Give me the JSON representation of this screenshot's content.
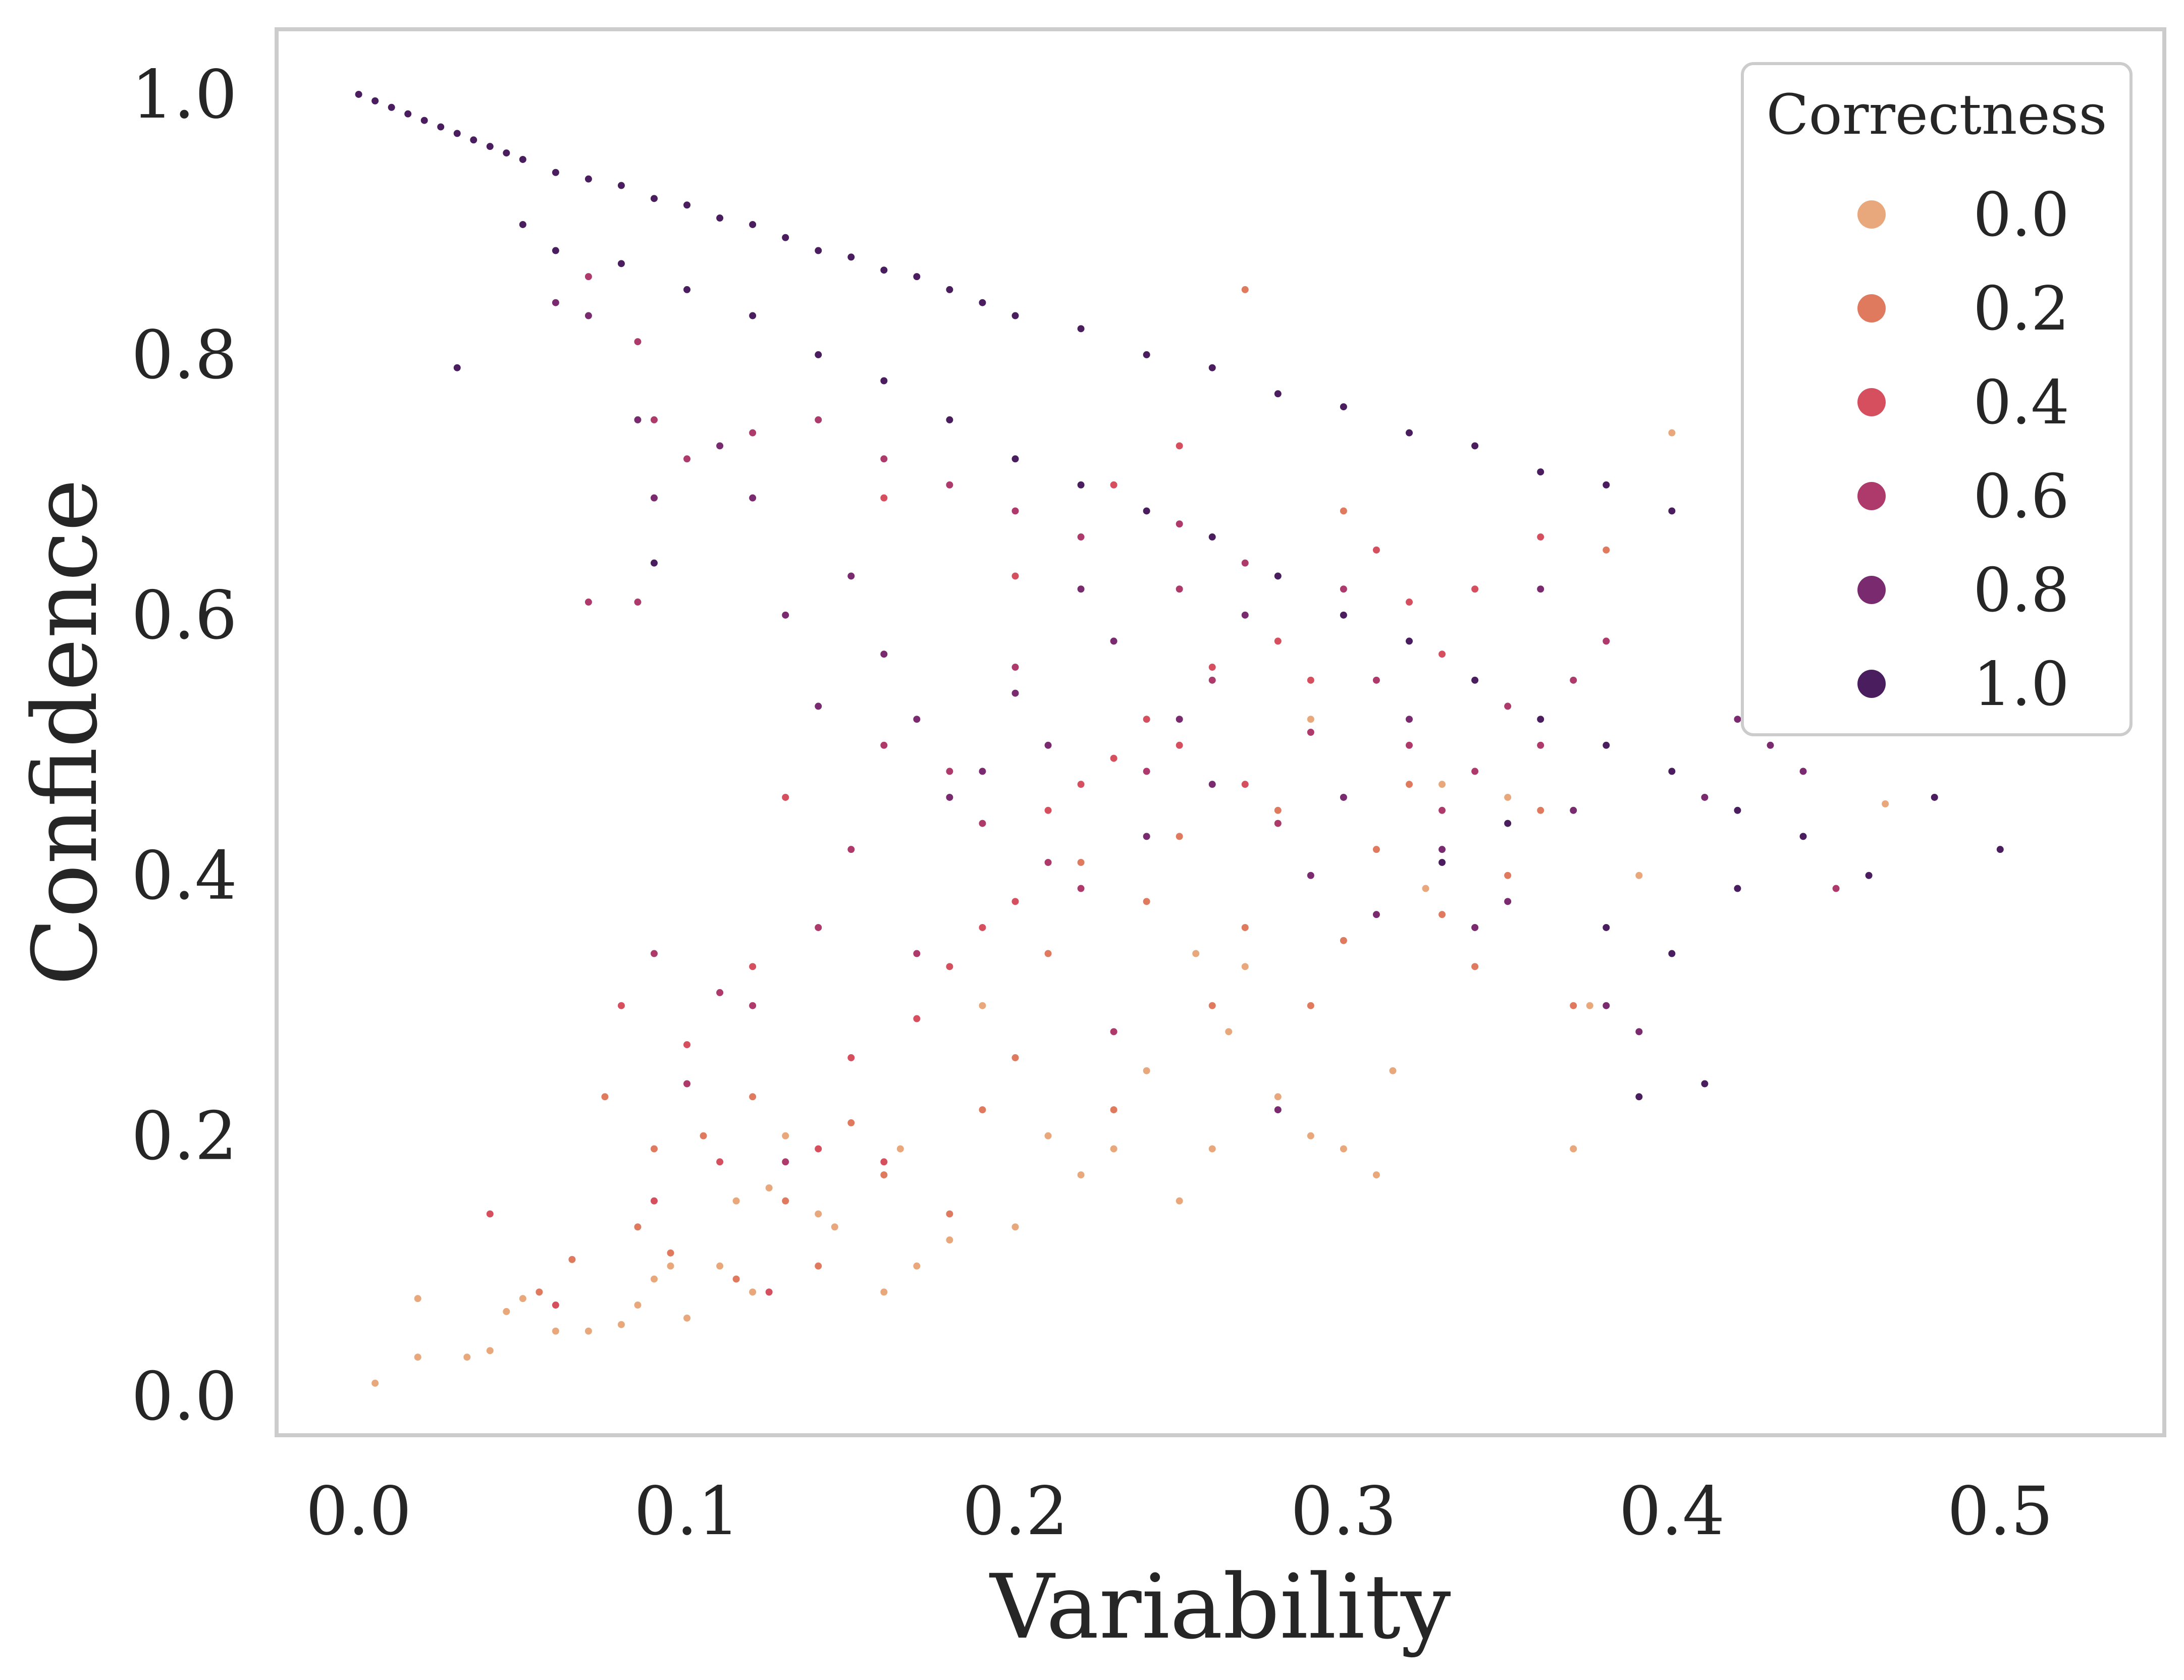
{
  "chart_data": {
    "type": "scatter",
    "title": "",
    "xlabel": "Variability",
    "ylabel": "Confidence",
    "xlim": [
      -0.025,
      0.55
    ],
    "ylim": [
      -0.03,
      1.05
    ],
    "grid": false,
    "xticks": [
      0.0,
      0.1,
      0.2,
      0.3,
      0.4,
      0.5
    ],
    "xtick_labels": [
      "0.0",
      "0.1",
      "0.2",
      "0.3",
      "0.4",
      "0.5"
    ],
    "yticks": [
      0.0,
      0.2,
      0.4,
      0.6,
      0.8,
      1.0
    ],
    "ytick_labels": [
      "0.0",
      "0.2",
      "0.4",
      "0.6",
      "0.8",
      "1.0"
    ],
    "hue": "Correctness",
    "legend": {
      "title": "Correctness",
      "placement": "top-right",
      "entries": [
        {
          "label": "0.0",
          "value": 0.0,
          "color": "#e8a87c"
        },
        {
          "label": "0.2",
          "value": 0.2,
          "color": "#e07a5f"
        },
        {
          "label": "0.4",
          "value": 0.4,
          "color": "#d64f5e"
        },
        {
          "label": "0.6",
          "value": 0.6,
          "color": "#ad3a6b"
        },
        {
          "label": "0.8",
          "value": 0.8,
          "color": "#7a2a6e"
        },
        {
          "label": "1.0",
          "value": 1.0,
          "color": "#4a1e5e"
        }
      ]
    },
    "series": [
      {
        "name": "0.0",
        "correctness": 0.0,
        "color": "#e8a87c",
        "points": [
          [
            0.005,
            0.01
          ],
          [
            0.018,
            0.03
          ],
          [
            0.018,
            0.075
          ],
          [
            0.033,
            0.03
          ],
          [
            0.04,
            0.035
          ],
          [
            0.045,
            0.065
          ],
          [
            0.05,
            0.075
          ],
          [
            0.06,
            0.05
          ],
          [
            0.07,
            0.05
          ],
          [
            0.08,
            0.055
          ],
          [
            0.085,
            0.07
          ],
          [
            0.09,
            0.09
          ],
          [
            0.095,
            0.1
          ],
          [
            0.1,
            0.06
          ],
          [
            0.11,
            0.1
          ],
          [
            0.115,
            0.15
          ],
          [
            0.12,
            0.08
          ],
          [
            0.125,
            0.16
          ],
          [
            0.13,
            0.2
          ],
          [
            0.14,
            0.14
          ],
          [
            0.145,
            0.13
          ],
          [
            0.16,
            0.08
          ],
          [
            0.165,
            0.19
          ],
          [
            0.17,
            0.1
          ],
          [
            0.18,
            0.12
          ],
          [
            0.19,
            0.3
          ],
          [
            0.2,
            0.13
          ],
          [
            0.21,
            0.2
          ],
          [
            0.22,
            0.17
          ],
          [
            0.23,
            0.19
          ],
          [
            0.24,
            0.25
          ],
          [
            0.25,
            0.15
          ],
          [
            0.26,
            0.19
          ],
          [
            0.265,
            0.28
          ],
          [
            0.28,
            0.23
          ],
          [
            0.29,
            0.2
          ],
          [
            0.3,
            0.19
          ],
          [
            0.31,
            0.17
          ],
          [
            0.315,
            0.25
          ],
          [
            0.325,
            0.39
          ],
          [
            0.33,
            0.47
          ],
          [
            0.35,
            0.46
          ],
          [
            0.37,
            0.19
          ],
          [
            0.375,
            0.3
          ],
          [
            0.39,
            0.4
          ],
          [
            0.4,
            0.74
          ],
          [
            0.465,
            0.455
          ],
          [
            0.255,
            0.34
          ],
          [
            0.27,
            0.33
          ],
          [
            0.29,
            0.52
          ]
        ]
      },
      {
        "name": "0.2",
        "correctness": 0.2,
        "color": "#e07a5f",
        "points": [
          [
            0.055,
            0.08
          ],
          [
            0.065,
            0.105
          ],
          [
            0.075,
            0.23
          ],
          [
            0.085,
            0.13
          ],
          [
            0.09,
            0.19
          ],
          [
            0.095,
            0.11
          ],
          [
            0.105,
            0.2
          ],
          [
            0.115,
            0.09
          ],
          [
            0.12,
            0.23
          ],
          [
            0.13,
            0.15
          ],
          [
            0.14,
            0.1
          ],
          [
            0.15,
            0.21
          ],
          [
            0.16,
            0.17
          ],
          [
            0.18,
            0.14
          ],
          [
            0.19,
            0.22
          ],
          [
            0.2,
            0.26
          ],
          [
            0.21,
            0.34
          ],
          [
            0.22,
            0.41
          ],
          [
            0.23,
            0.22
          ],
          [
            0.24,
            0.38
          ],
          [
            0.25,
            0.43
          ],
          [
            0.26,
            0.3
          ],
          [
            0.27,
            0.36
          ],
          [
            0.28,
            0.45
          ],
          [
            0.29,
            0.3
          ],
          [
            0.3,
            0.35
          ],
          [
            0.31,
            0.42
          ],
          [
            0.32,
            0.47
          ],
          [
            0.33,
            0.37
          ],
          [
            0.34,
            0.33
          ],
          [
            0.35,
            0.4
          ],
          [
            0.36,
            0.45
          ],
          [
            0.37,
            0.3
          ],
          [
            0.38,
            0.65
          ],
          [
            0.27,
            0.85
          ],
          [
            0.3,
            0.68
          ]
        ]
      },
      {
        "name": "0.4",
        "correctness": 0.4,
        "color": "#d64f5e",
        "points": [
          [
            0.04,
            0.14
          ],
          [
            0.06,
            0.07
          ],
          [
            0.08,
            0.3
          ],
          [
            0.09,
            0.15
          ],
          [
            0.1,
            0.27
          ],
          [
            0.11,
            0.18
          ],
          [
            0.12,
            0.33
          ],
          [
            0.125,
            0.08
          ],
          [
            0.13,
            0.46
          ],
          [
            0.14,
            0.19
          ],
          [
            0.15,
            0.26
          ],
          [
            0.16,
            0.18
          ],
          [
            0.17,
            0.29
          ],
          [
            0.18,
            0.33
          ],
          [
            0.19,
            0.36
          ],
          [
            0.2,
            0.38
          ],
          [
            0.21,
            0.45
          ],
          [
            0.22,
            0.47
          ],
          [
            0.23,
            0.49
          ],
          [
            0.24,
            0.52
          ],
          [
            0.25,
            0.5
          ],
          [
            0.26,
            0.56
          ],
          [
            0.27,
            0.47
          ],
          [
            0.28,
            0.58
          ],
          [
            0.29,
            0.55
          ],
          [
            0.3,
            0.6
          ],
          [
            0.31,
            0.65
          ],
          [
            0.32,
            0.61
          ],
          [
            0.33,
            0.57
          ],
          [
            0.34,
            0.62
          ],
          [
            0.36,
            0.66
          ],
          [
            0.16,
            0.69
          ],
          [
            0.2,
            0.63
          ],
          [
            0.23,
            0.7
          ],
          [
            0.25,
            0.73
          ]
        ]
      },
      {
        "name": "0.6",
        "correctness": 0.6,
        "color": "#ad3a6b",
        "points": [
          [
            0.07,
            0.61
          ],
          [
            0.085,
            0.61
          ],
          [
            0.09,
            0.34
          ],
          [
            0.1,
            0.24
          ],
          [
            0.11,
            0.31
          ],
          [
            0.12,
            0.3
          ],
          [
            0.13,
            0.18
          ],
          [
            0.14,
            0.36
          ],
          [
            0.15,
            0.42
          ],
          [
            0.16,
            0.5
          ],
          [
            0.17,
            0.34
          ],
          [
            0.18,
            0.48
          ],
          [
            0.19,
            0.44
          ],
          [
            0.2,
            0.56
          ],
          [
            0.21,
            0.41
          ],
          [
            0.22,
            0.39
          ],
          [
            0.23,
            0.28
          ],
          [
            0.24,
            0.48
          ],
          [
            0.25,
            0.62
          ],
          [
            0.26,
            0.55
          ],
          [
            0.27,
            0.64
          ],
          [
            0.28,
            0.44
          ],
          [
            0.29,
            0.51
          ],
          [
            0.3,
            0.62
          ],
          [
            0.31,
            0.55
          ],
          [
            0.32,
            0.5
          ],
          [
            0.33,
            0.45
          ],
          [
            0.34,
            0.48
          ],
          [
            0.35,
            0.53
          ],
          [
            0.36,
            0.5
          ],
          [
            0.37,
            0.55
          ],
          [
            0.38,
            0.58
          ],
          [
            0.44,
            0.43
          ],
          [
            0.45,
            0.39
          ],
          [
            0.07,
            0.86
          ],
          [
            0.085,
            0.81
          ],
          [
            0.09,
            0.75
          ],
          [
            0.1,
            0.72
          ],
          [
            0.12,
            0.74
          ],
          [
            0.14,
            0.75
          ],
          [
            0.16,
            0.72
          ],
          [
            0.18,
            0.7
          ],
          [
            0.2,
            0.68
          ],
          [
            0.22,
            0.66
          ],
          [
            0.25,
            0.67
          ]
        ]
      },
      {
        "name": "0.8",
        "correctness": 0.8,
        "color": "#7a2a6e",
        "points": [
          [
            0.06,
            0.84
          ],
          [
            0.07,
            0.83
          ],
          [
            0.085,
            0.75
          ],
          [
            0.09,
            0.69
          ],
          [
            0.11,
            0.73
          ],
          [
            0.12,
            0.69
          ],
          [
            0.13,
            0.6
          ],
          [
            0.14,
            0.53
          ],
          [
            0.15,
            0.63
          ],
          [
            0.16,
            0.57
          ],
          [
            0.17,
            0.52
          ],
          [
            0.18,
            0.46
          ],
          [
            0.19,
            0.48
          ],
          [
            0.2,
            0.54
          ],
          [
            0.21,
            0.5
          ],
          [
            0.22,
            0.62
          ],
          [
            0.23,
            0.58
          ],
          [
            0.24,
            0.43
          ],
          [
            0.25,
            0.52
          ],
          [
            0.26,
            0.47
          ],
          [
            0.27,
            0.6
          ],
          [
            0.28,
            0.22
          ],
          [
            0.29,
            0.4
          ],
          [
            0.3,
            0.46
          ],
          [
            0.31,
            0.37
          ],
          [
            0.32,
            0.52
          ],
          [
            0.33,
            0.42
          ],
          [
            0.34,
            0.36
          ],
          [
            0.35,
            0.38
          ],
          [
            0.36,
            0.62
          ],
          [
            0.37,
            0.45
          ],
          [
            0.38,
            0.3
          ],
          [
            0.39,
            0.28
          ],
          [
            0.4,
            0.48
          ],
          [
            0.41,
            0.46
          ],
          [
            0.42,
            0.52
          ],
          [
            0.43,
            0.5
          ],
          [
            0.44,
            0.48
          ]
        ]
      },
      {
        "name": "1.0",
        "correctness": 1.0,
        "color": "#4a1e5e",
        "points": [
          [
            0.0,
            1.0
          ],
          [
            0.005,
            0.995
          ],
          [
            0.01,
            0.99
          ],
          [
            0.015,
            0.985
          ],
          [
            0.02,
            0.98
          ],
          [
            0.025,
            0.975
          ],
          [
            0.03,
            0.97
          ],
          [
            0.035,
            0.965
          ],
          [
            0.04,
            0.96
          ],
          [
            0.045,
            0.955
          ],
          [
            0.05,
            0.95
          ],
          [
            0.06,
            0.94
          ],
          [
            0.07,
            0.935
          ],
          [
            0.08,
            0.93
          ],
          [
            0.09,
            0.92
          ],
          [
            0.1,
            0.915
          ],
          [
            0.11,
            0.905
          ],
          [
            0.12,
            0.9
          ],
          [
            0.13,
            0.89
          ],
          [
            0.14,
            0.88
          ],
          [
            0.15,
            0.875
          ],
          [
            0.16,
            0.865
          ],
          [
            0.17,
            0.86
          ],
          [
            0.18,
            0.85
          ],
          [
            0.19,
            0.84
          ],
          [
            0.2,
            0.83
          ],
          [
            0.22,
            0.82
          ],
          [
            0.24,
            0.8
          ],
          [
            0.26,
            0.79
          ],
          [
            0.28,
            0.77
          ],
          [
            0.3,
            0.76
          ],
          [
            0.32,
            0.74
          ],
          [
            0.34,
            0.73
          ],
          [
            0.36,
            0.71
          ],
          [
            0.38,
            0.7
          ],
          [
            0.4,
            0.68
          ],
          [
            0.05,
            0.9
          ],
          [
            0.06,
            0.88
          ],
          [
            0.08,
            0.87
          ],
          [
            0.1,
            0.85
          ],
          [
            0.12,
            0.83
          ],
          [
            0.14,
            0.8
          ],
          [
            0.16,
            0.78
          ],
          [
            0.18,
            0.75
          ],
          [
            0.2,
            0.72
          ],
          [
            0.22,
            0.7
          ],
          [
            0.24,
            0.68
          ],
          [
            0.26,
            0.66
          ],
          [
            0.28,
            0.63
          ],
          [
            0.3,
            0.6
          ],
          [
            0.32,
            0.58
          ],
          [
            0.34,
            0.55
          ],
          [
            0.36,
            0.52
          ],
          [
            0.38,
            0.5
          ],
          [
            0.4,
            0.48
          ],
          [
            0.42,
            0.45
          ],
          [
            0.44,
            0.43
          ],
          [
            0.46,
            0.4
          ],
          [
            0.48,
            0.46
          ],
          [
            0.5,
            0.42
          ],
          [
            0.41,
            0.24
          ],
          [
            0.39,
            0.23
          ],
          [
            0.4,
            0.34
          ],
          [
            0.42,
            0.39
          ],
          [
            0.38,
            0.36
          ],
          [
            0.35,
            0.44
          ],
          [
            0.33,
            0.41
          ],
          [
            0.03,
            0.79
          ],
          [
            0.09,
            0.64
          ]
        ]
      }
    ]
  }
}
